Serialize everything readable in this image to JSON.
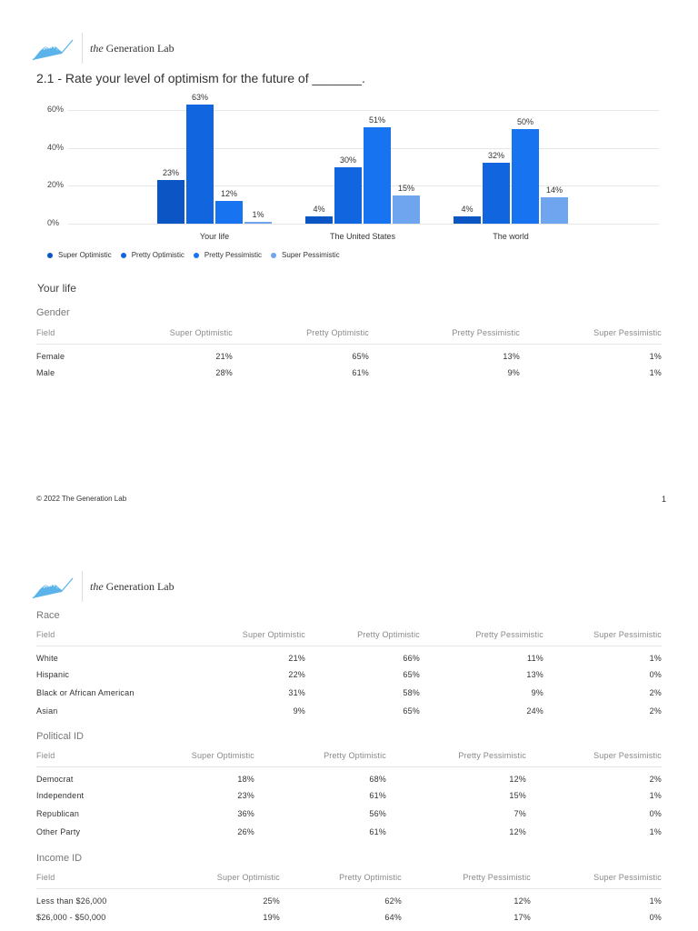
{
  "branding": {
    "logo_prefix": "the",
    "logo_name": "Generation Lab",
    "icon": "mountain-chart-logo-icon"
  },
  "question": {
    "title": "2.1 - Rate your level of optimism for the future of _______."
  },
  "colors": {
    "super_optimistic": "#0b55c4",
    "pretty_optimistic": "#1166df",
    "pretty_pessimistic": "#1873f0",
    "super_pessimistic": "#6fa4ee",
    "gridline": "#e6e6e6"
  },
  "chart_data": {
    "type": "bar",
    "title": "2.1 - Rate your level of optimism for the future of _______.",
    "categories": [
      "Your life",
      "The United States",
      "The world"
    ],
    "series": [
      {
        "name": "Super Optimistic",
        "values": [
          23,
          4,
          4
        ]
      },
      {
        "name": "Pretty Optimistic",
        "values": [
          63,
          30,
          32
        ]
      },
      {
        "name": "Pretty Pessimistic",
        "values": [
          12,
          51,
          50
        ]
      },
      {
        "name": "Super Pessimistic",
        "values": [
          1,
          15,
          14
        ]
      }
    ],
    "yticks": [
      "0%",
      "20%",
      "40%",
      "60%"
    ],
    "ylim": [
      0,
      65
    ],
    "xlabel": "",
    "ylabel": "",
    "grid": true,
    "legend_position": "bottom-left",
    "data_labels": [
      [
        "23%",
        "63%",
        "12%",
        "1%"
      ],
      [
        "4%",
        "30%",
        "51%",
        "15%"
      ],
      [
        "4%",
        "32%",
        "50%",
        "14%"
      ]
    ]
  },
  "legend": [
    {
      "label": "Super Optimistic"
    },
    {
      "label": "Pretty Optimistic"
    },
    {
      "label": "Pretty Pessimistic"
    },
    {
      "label": "Super Pessimistic"
    }
  ],
  "sections": {
    "your_life": {
      "title": "Your life",
      "gender": {
        "title": "Gender",
        "headers": [
          "Field",
          "Super Optimistic",
          "Pretty Optimistic",
          "Pretty Pessimistic",
          "Super Pessimistic"
        ],
        "rows": [
          [
            "Female",
            "21%",
            "65%",
            "13%",
            "1%"
          ],
          [
            "Male",
            "28%",
            "61%",
            "9%",
            "1%"
          ]
        ]
      },
      "race": {
        "title": "Race",
        "headers": [
          "Field",
          "Super Optimistic",
          "Pretty Optimistic",
          "Pretty Pessimistic",
          "Super Pessimistic"
        ],
        "rows": [
          [
            "White",
            "21%",
            "66%",
            "11%",
            "1%"
          ],
          [
            "Hispanic",
            "22%",
            "65%",
            "13%",
            "0%"
          ],
          [
            "Black or African American",
            "31%",
            "58%",
            "9%",
            "2%"
          ],
          [
            "Asian",
            "9%",
            "65%",
            "24%",
            "2%"
          ]
        ]
      },
      "political": {
        "title": "Political ID",
        "headers": [
          "Field",
          "Super Optimistic",
          "Pretty Optimistic",
          "Pretty Pessimistic",
          "Super Pessimistic"
        ],
        "rows": [
          [
            "Democrat",
            "18%",
            "68%",
            "12%",
            "2%"
          ],
          [
            "Independent",
            "23%",
            "61%",
            "15%",
            "1%"
          ],
          [
            "Republican",
            "36%",
            "56%",
            "7%",
            "0%"
          ],
          [
            "Other Party",
            "26%",
            "61%",
            "12%",
            "1%"
          ]
        ]
      },
      "income": {
        "title": "Income ID",
        "headers": [
          "Field",
          "Super Optimistic",
          "Pretty Optimistic",
          "Pretty Pessimistic",
          "Super Pessimistic"
        ],
        "rows": [
          [
            "Less than $26,000",
            "25%",
            "62%",
            "12%",
            "1%"
          ],
          [
            "$26,000 - $50,000",
            "19%",
            "64%",
            "17%",
            "0%"
          ]
        ]
      }
    }
  },
  "footer": {
    "copyright": "© 2022 The Generation Lab",
    "page_number": "1"
  }
}
